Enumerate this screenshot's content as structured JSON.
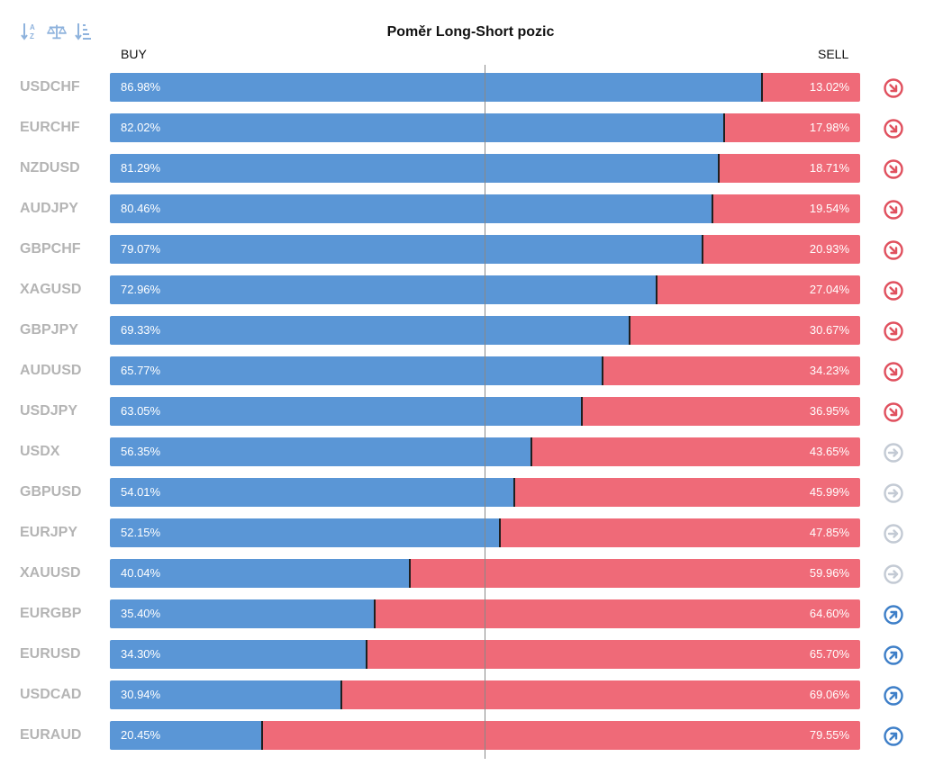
{
  "toolbar": {
    "buttons": [
      {
        "name": "sort-alpha-icon"
      },
      {
        "name": "balance-icon"
      },
      {
        "name": "sort-value-icon"
      }
    ]
  },
  "colors": {
    "buy": "#5a96d6",
    "sell": "#ef6a78",
    "signal_down": "#e0505e",
    "signal_neutral": "#c3cad4",
    "signal_up": "#3e7fc8",
    "symbol_text": "#b4b4b4"
  },
  "chart_data": {
    "type": "bar",
    "orientation": "horizontal",
    "stacked": true,
    "title": "Poměr Long-Short pozic",
    "buy_label": "BUY",
    "sell_label": "SELL",
    "categories": [
      "USDCHF",
      "EURCHF",
      "NZDUSD",
      "AUDJPY",
      "GBPCHF",
      "XAGUSD",
      "GBPJPY",
      "AUDUSD",
      "USDJPY",
      "USDX",
      "GBPUSD",
      "EURJPY",
      "XAUUSD",
      "EURGBP",
      "EURUSD",
      "USDCAD",
      "EURAUD"
    ],
    "series": [
      {
        "name": "BUY",
        "values": [
          86.98,
          82.02,
          81.29,
          80.46,
          79.07,
          72.96,
          69.33,
          65.77,
          63.05,
          56.35,
          54.01,
          52.15,
          40.04,
          35.4,
          34.3,
          30.94,
          20.45
        ]
      },
      {
        "name": "SELL",
        "values": [
          13.02,
          17.98,
          18.71,
          19.54,
          20.93,
          27.04,
          30.67,
          34.23,
          36.95,
          43.65,
          45.99,
          47.85,
          59.96,
          64.6,
          65.7,
          69.06,
          79.55
        ]
      }
    ],
    "buy_labels": [
      "86.98%",
      "82.02%",
      "81.29%",
      "80.46%",
      "79.07%",
      "72.96%",
      "69.33%",
      "65.77%",
      "63.05%",
      "56.35%",
      "54.01%",
      "52.15%",
      "40.04%",
      "35.40%",
      "34.30%",
      "30.94%",
      "20.45%"
    ],
    "sell_labels": [
      "13.02%",
      "17.98%",
      "18.71%",
      "19.54%",
      "20.93%",
      "27.04%",
      "30.67%",
      "34.23%",
      "36.95%",
      "43.65%",
      "45.99%",
      "47.85%",
      "59.96%",
      "64.60%",
      "65.70%",
      "69.06%",
      "79.55%"
    ],
    "signals": [
      "down",
      "down",
      "down",
      "down",
      "down",
      "down",
      "down",
      "down",
      "down",
      "neutral",
      "neutral",
      "neutral",
      "neutral",
      "up",
      "up",
      "up",
      "up"
    ],
    "xlim": [
      0,
      100
    ],
    "center_line": 50
  }
}
